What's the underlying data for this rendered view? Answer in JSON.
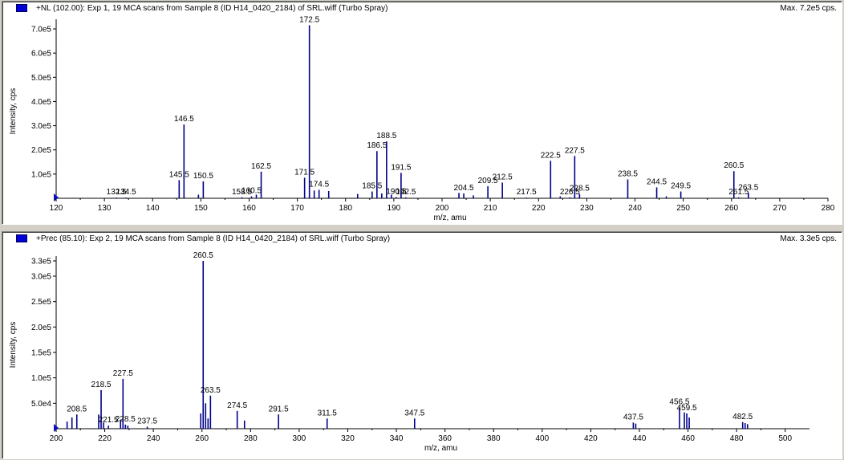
{
  "colors": {
    "peak": "#00008b",
    "marker": "#0000d8",
    "axis": "#000000"
  },
  "chart_data": [
    {
      "type": "bar",
      "title": "+NL (102.00): Exp 1, 19 MCA scans from Sample 8 (ID H14_0420_2184) of SRL.wiff (Turbo Spray)",
      "max_label": "Max. 7.2e5 cps.",
      "xlabel": "m/z, amu",
      "ylabel": "Intensity, cps",
      "xlim": [
        120,
        280
      ],
      "ylim": [
        0,
        720000
      ],
      "xticks": [
        "120",
        "130",
        "140",
        "150",
        "160",
        "170",
        "180",
        "190",
        "200",
        "210",
        "220",
        "230",
        "240",
        "250",
        "260",
        "270",
        "280"
      ],
      "yticks": [
        {
          "v": 100000,
          "label": "1.0e5"
        },
        {
          "v": 200000,
          "label": "2.0e5"
        },
        {
          "v": 300000,
          "label": "3.0e5"
        },
        {
          "v": 400000,
          "label": "4.0e5"
        },
        {
          "v": 500000,
          "label": "5.0e5"
        },
        {
          "v": 600000,
          "label": "6.0e5"
        },
        {
          "v": 700000,
          "label": "7.0e5"
        }
      ],
      "peaks": [
        {
          "x": 132.5,
          "y": 3000,
          "label": "132.5"
        },
        {
          "x": 134.5,
          "y": 3000,
          "label": "134.5"
        },
        {
          "x": 145.5,
          "y": 75000,
          "label": "145.5"
        },
        {
          "x": 146.5,
          "y": 305000,
          "label": "146.5"
        },
        {
          "x": 149.5,
          "y": 15000
        },
        {
          "x": 150.5,
          "y": 70000,
          "label": "150.5"
        },
        {
          "x": 158.5,
          "y": 4000,
          "label": "158.5"
        },
        {
          "x": 160.5,
          "y": 8000,
          "label": "160.5"
        },
        {
          "x": 161.5,
          "y": 15000
        },
        {
          "x": 162.5,
          "y": 110000,
          "label": "162.5"
        },
        {
          "x": 171.5,
          "y": 85000,
          "label": "171.5"
        },
        {
          "x": 172.5,
          "y": 715000,
          "label": "172.5"
        },
        {
          "x": 173.5,
          "y": 32000
        },
        {
          "x": 174.5,
          "y": 35000,
          "label": "174.5"
        },
        {
          "x": 176.5,
          "y": 30000
        },
        {
          "x": 182.5,
          "y": 18000
        },
        {
          "x": 185.5,
          "y": 28000,
          "label": "185.5"
        },
        {
          "x": 186.5,
          "y": 195000,
          "label": "186.5"
        },
        {
          "x": 187.5,
          "y": 20000
        },
        {
          "x": 188.5,
          "y": 235000,
          "label": "188.5"
        },
        {
          "x": 189.5,
          "y": 15000
        },
        {
          "x": 190.5,
          "y": 5000,
          "label": "190.5"
        },
        {
          "x": 191.5,
          "y": 105000,
          "label": "191.5"
        },
        {
          "x": 192.5,
          "y": 4000,
          "label": "192.5"
        },
        {
          "x": 203.5,
          "y": 22000
        },
        {
          "x": 204.5,
          "y": 20000,
          "label": "204.5"
        },
        {
          "x": 206.5,
          "y": 12000
        },
        {
          "x": 209.5,
          "y": 50000,
          "label": "209.5"
        },
        {
          "x": 212.5,
          "y": 65000,
          "label": "212.5"
        },
        {
          "x": 217.5,
          "y": 3000,
          "label": "217.5"
        },
        {
          "x": 222.5,
          "y": 155000,
          "label": "222.5"
        },
        {
          "x": 224.5,
          "y": 8000
        },
        {
          "x": 226.5,
          "y": 4000,
          "label": "226.5"
        },
        {
          "x": 227.5,
          "y": 175000,
          "label": "227.5"
        },
        {
          "x": 228.5,
          "y": 18000,
          "label": "228.5"
        },
        {
          "x": 238.5,
          "y": 78000,
          "label": "238.5"
        },
        {
          "x": 244.5,
          "y": 45000,
          "label": "244.5"
        },
        {
          "x": 246.5,
          "y": 8000
        },
        {
          "x": 249.5,
          "y": 28000,
          "label": "249.5"
        },
        {
          "x": 260.5,
          "y": 112000,
          "label": "260.5"
        },
        {
          "x": 261.5,
          "y": 4000,
          "label": "261.5"
        },
        {
          "x": 263.5,
          "y": 22000,
          "label": "263.5"
        }
      ]
    },
    {
      "type": "bar",
      "title": "+Prec (85.10): Exp 2, 19 MCA scans from Sample 8 (ID H14_0420_2184) of SRL.wiff (Turbo Spray)",
      "max_label": "Max. 3.3e5 cps.",
      "xlabel": "m/z, amu",
      "ylabel": "Intensity, cps",
      "xlim": [
        200,
        510
      ],
      "ylim": [
        0,
        330000
      ],
      "xticks": [
        "200",
        "220",
        "240",
        "260",
        "280",
        "300",
        "320",
        "340",
        "360",
        "380",
        "400",
        "420",
        "440",
        "460",
        "480",
        "500"
      ],
      "yticks": [
        {
          "v": 50000,
          "label": "5.0e4"
        },
        {
          "v": 100000,
          "label": "1.0e5"
        },
        {
          "v": 150000,
          "label": "1.5e5"
        },
        {
          "v": 200000,
          "label": "2.0e5"
        },
        {
          "v": 250000,
          "label": "2.5e5"
        },
        {
          "v": 300000,
          "label": "3.0e5"
        },
        {
          "v": 330000,
          "label": "3.3e5"
        }
      ],
      "peaks": [
        {
          "x": 204.5,
          "y": 14000
        },
        {
          "x": 206.5,
          "y": 22000
        },
        {
          "x": 208.5,
          "y": 28000,
          "label": "208.5"
        },
        {
          "x": 217.5,
          "y": 28000
        },
        {
          "x": 218.5,
          "y": 76000,
          "label": "218.5"
        },
        {
          "x": 219.5,
          "y": 12000
        },
        {
          "x": 221.5,
          "y": 6000,
          "label": "221.5"
        },
        {
          "x": 226.5,
          "y": 18000
        },
        {
          "x": 227.5,
          "y": 98000,
          "label": "227.5"
        },
        {
          "x": 228.5,
          "y": 8000,
          "label": "228.5"
        },
        {
          "x": 229.5,
          "y": 6000
        },
        {
          "x": 237.5,
          "y": 4000,
          "label": "237.5"
        },
        {
          "x": 259.5,
          "y": 30000
        },
        {
          "x": 260.5,
          "y": 330000,
          "label": "260.5"
        },
        {
          "x": 261.5,
          "y": 50000
        },
        {
          "x": 262.5,
          "y": 20000
        },
        {
          "x": 263.5,
          "y": 65000,
          "label": "263.5"
        },
        {
          "x": 274.5,
          "y": 35000,
          "label": "274.5"
        },
        {
          "x": 277.5,
          "y": 16000
        },
        {
          "x": 291.5,
          "y": 28000,
          "label": "291.5"
        },
        {
          "x": 311.5,
          "y": 20000,
          "label": "311.5"
        },
        {
          "x": 347.5,
          "y": 20000,
          "label": "347.5"
        },
        {
          "x": 437.5,
          "y": 12000,
          "label": "437.5"
        },
        {
          "x": 438.5,
          "y": 10000
        },
        {
          "x": 456.5,
          "y": 42000,
          "label": "456.5"
        },
        {
          "x": 458.5,
          "y": 32000
        },
        {
          "x": 459.5,
          "y": 30000,
          "label": "459.5"
        },
        {
          "x": 460.5,
          "y": 22000
        },
        {
          "x": 482.5,
          "y": 13000,
          "label": "482.5"
        },
        {
          "x": 483.5,
          "y": 11000
        },
        {
          "x": 484.5,
          "y": 9000
        }
      ]
    }
  ]
}
